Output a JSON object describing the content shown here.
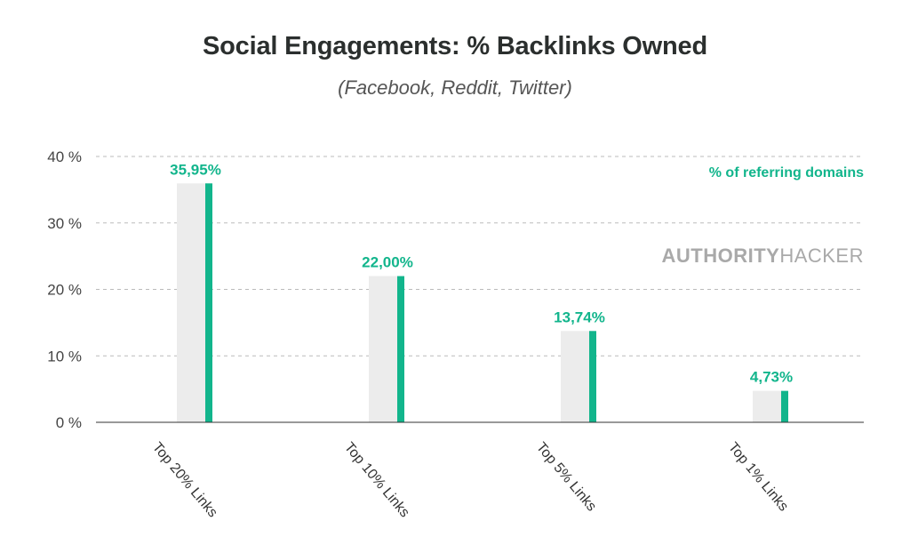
{
  "colors": {
    "accent": "#12b58c",
    "bar_background": "#ececec",
    "grid": "#bbbbbb",
    "watermark": "#a9a9a9"
  },
  "legend": {
    "label": "% of referring domains",
    "placement": "top-right"
  },
  "watermark": {
    "bold": "AUTHORITY",
    "regular": "HACKER"
  },
  "chart_data": {
    "type": "bar",
    "title": "Social Engagements: % Backlinks Owned",
    "subtitle": "(Facebook, Reddit, Twitter)",
    "xlabel": "",
    "ylabel": "",
    "categories": [
      "Top 20% Links",
      "Top 10% Links",
      "Top 5% Links",
      "Top 1% Links"
    ],
    "series": [
      {
        "name": "% of referring domains",
        "values": [
          35.95,
          22.0,
          13.74,
          4.73
        ],
        "labels": [
          "35,95%",
          "22,00%",
          "13,74%",
          "4,73%"
        ]
      }
    ],
    "ylim": [
      0,
      40
    ],
    "yticks": [
      0,
      10,
      20,
      30,
      40
    ],
    "ytick_labels": [
      "0 %",
      "10 %",
      "20 %",
      "30 %",
      "40 %"
    ],
    "grid": true
  }
}
